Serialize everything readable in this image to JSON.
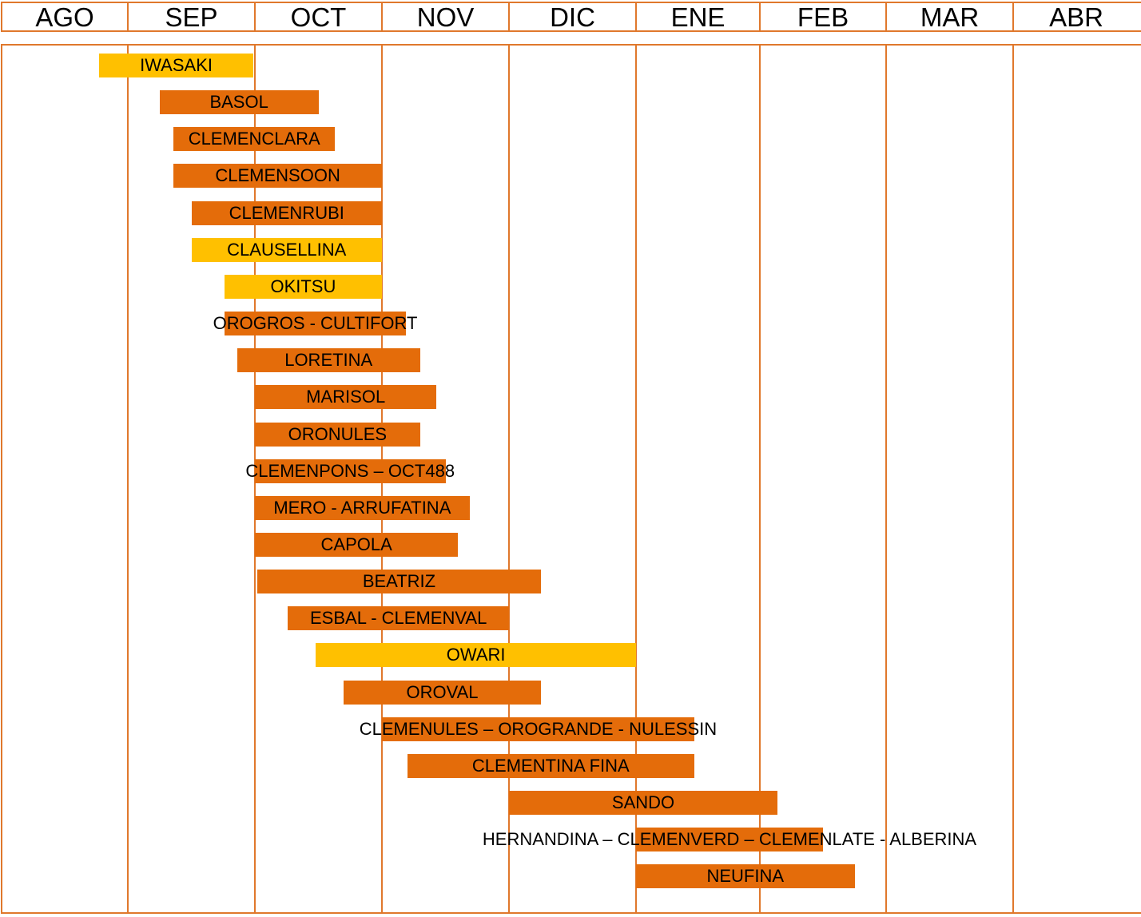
{
  "chart_data": {
    "type": "bar",
    "orientation": "horizontal-timeline",
    "x_categories": [
      "AGO",
      "SEP",
      "OCT",
      "NOV",
      "DIC",
      "ENE",
      "FEB",
      "MAR",
      "ABR"
    ],
    "x_unit": "months from start of AGO",
    "grid": true,
    "colors": {
      "primary": "#e46c0a",
      "secondary": "#ffc000",
      "grid": "#e0782c"
    },
    "series": [
      {
        "label": "IWASAKI",
        "start": 0.77,
        "end": 1.99,
        "color": "#ffc000"
      },
      {
        "label": "BASOL",
        "start": 1.25,
        "end": 2.5,
        "color": "#e46c0a"
      },
      {
        "label": "CLEMENCLARA",
        "start": 1.36,
        "end": 2.63,
        "color": "#e46c0a"
      },
      {
        "label": "CLEMENSOON",
        "start": 1.36,
        "end": 3.0,
        "color": "#e46c0a"
      },
      {
        "label": "CLEMENRUBI",
        "start": 1.5,
        "end": 3.0,
        "color": "#e46c0a"
      },
      {
        "label": "CLAUSELLINA",
        "start": 1.5,
        "end": 3.0,
        "color": "#ffc000"
      },
      {
        "label": "OKITSU",
        "start": 1.76,
        "end": 3.0,
        "color": "#ffc000"
      },
      {
        "label": "OROGROS - CULTIFORT",
        "start": 1.76,
        "end": 3.19,
        "color": "#e46c0a"
      },
      {
        "label": "LORETINA",
        "start": 1.86,
        "end": 3.3,
        "color": "#e46c0a"
      },
      {
        "label": "MARISOL",
        "start": 2.0,
        "end": 3.43,
        "color": "#e46c0a"
      },
      {
        "label": "ORONULES",
        "start": 2.0,
        "end": 3.3,
        "color": "#e46c0a"
      },
      {
        "label": "CLEMENPONS – OCT488",
        "start": 2.0,
        "end": 3.5,
        "color": "#e46c0a"
      },
      {
        "label": "MERO - ARRUFATINA",
        "start": 2.0,
        "end": 3.69,
        "color": "#e46c0a"
      },
      {
        "label": "CAPOLA",
        "start": 2.0,
        "end": 3.6,
        "color": "#e46c0a"
      },
      {
        "label": "BEATRIZ",
        "start": 2.02,
        "end": 4.25,
        "color": "#e46c0a"
      },
      {
        "label": "ESBAL - CLEMENVAL",
        "start": 2.26,
        "end": 4.0,
        "color": "#e46c0a"
      },
      {
        "label": "OWARI",
        "start": 2.48,
        "end": 5.0,
        "color": "#ffc000"
      },
      {
        "label": "OROVAL",
        "start": 2.7,
        "end": 4.25,
        "color": "#e46c0a"
      },
      {
        "label": "CLEMENULES – OROGRANDE - NULESSIN",
        "start": 3.0,
        "end": 5.47,
        "color": "#e46c0a"
      },
      {
        "label": "CLEMENTINA FINA",
        "start": 3.2,
        "end": 5.47,
        "color": "#e46c0a"
      },
      {
        "label": "SANDO",
        "start": 4.0,
        "end": 6.14,
        "color": "#e46c0a"
      },
      {
        "label": "HERNANDINA – CLEMENVERD – CLEMENLATE - ALBERINA",
        "start": 5.0,
        "end": 6.5,
        "color": "#e46c0a"
      },
      {
        "label": "NEUFINA",
        "start": 5.0,
        "end": 6.75,
        "color": "#e46c0a"
      }
    ]
  }
}
